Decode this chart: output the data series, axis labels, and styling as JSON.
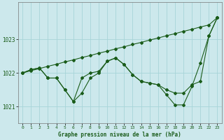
{
  "title": "Graphe pression niveau de la mer (hPa)",
  "background_color": "#cce8ec",
  "grid_color": "#a8d4d8",
  "line_color": "#1a5c1a",
  "x_labels": [
    "0",
    "1",
    "2",
    "3",
    "4",
    "5",
    "6",
    "7",
    "8",
    "9",
    "10",
    "11",
    "12",
    "13",
    "14",
    "15",
    "16",
    "17",
    "18",
    "19",
    "20",
    "21",
    "22",
    "23"
  ],
  "ylim": [
    1020.5,
    1024.1
  ],
  "yticks": [
    1021,
    1022,
    1023
  ],
  "line1": [
    1022.0,
    1022.1,
    1022.15,
    1021.85,
    1021.85,
    1021.5,
    1021.15,
    1021.4,
    1021.85,
    1022.0,
    1022.35,
    1022.45,
    1022.25,
    1021.95,
    1021.75,
    1021.7,
    1021.65,
    1021.35,
    1021.05,
    1021.05,
    1021.6,
    1022.3,
    1023.1,
    1023.65
  ],
  "line2": [
    1022.0,
    1022.1,
    1022.15,
    1021.85,
    1021.85,
    1021.5,
    1021.15,
    1021.85,
    1022.0,
    1022.05,
    1022.35,
    1022.45,
    1022.25,
    1021.95,
    1021.75,
    1021.7,
    1021.65,
    1021.5,
    1021.4,
    1021.4,
    1021.65,
    1021.75,
    1023.1,
    1023.65
  ],
  "line3": [
    1022.0,
    1022.07,
    1022.13,
    1022.2,
    1022.26,
    1022.33,
    1022.39,
    1022.46,
    1022.52,
    1022.59,
    1022.65,
    1022.72,
    1022.78,
    1022.85,
    1022.91,
    1022.98,
    1023.04,
    1023.11,
    1023.17,
    1023.24,
    1023.3,
    1023.37,
    1023.43,
    1023.65
  ]
}
